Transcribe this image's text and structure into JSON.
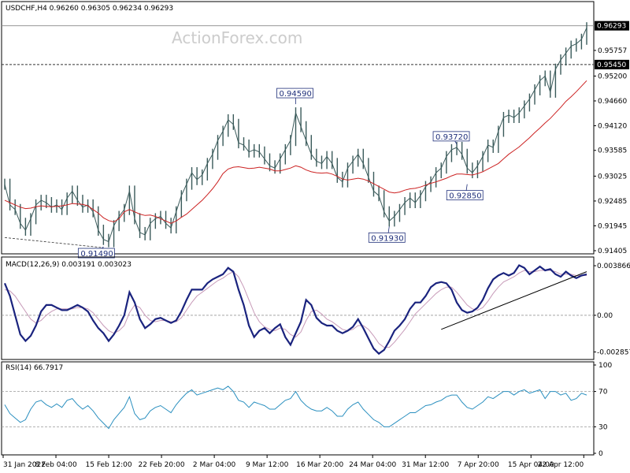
{
  "watermark": "ActionForex.com",
  "colors": {
    "background": "#ffffff",
    "price_bar": "#3a5a5a",
    "moving_average": "#cc2222",
    "macd_line": "#1a237e",
    "signal_line": "#c79ab8",
    "rsi_line": "#2a8fbf",
    "annotation": "#1f2f7a",
    "grid": "#9a9a9a"
  },
  "chart_data": [
    {
      "type": "line",
      "panel": "price",
      "title": "USDCHF,H4 0.96260 0.96305 0.96234 0.96293",
      "ylim": [
        0.91405,
        0.9675
      ],
      "y_ticks": [
        {
          "value": 0.95757,
          "label": "0.95757"
        },
        {
          "value": 0.952,
          "label": "0.95200"
        },
        {
          "value": 0.9466,
          "label": "0.94660"
        },
        {
          "value": 0.9412,
          "label": "0.94120"
        },
        {
          "value": 0.93585,
          "label": "0.93585"
        },
        {
          "value": 0.93025,
          "label": "0.93025"
        },
        {
          "value": 0.92485,
          "label": "0.92485"
        },
        {
          "value": 0.91945,
          "label": "0.91945"
        },
        {
          "value": 0.91405,
          "label": "0.91405"
        }
      ],
      "highlighted_levels": [
        {
          "value": 0.96293,
          "label": "0.96293"
        },
        {
          "value": 0.9545,
          "label": "0.95450"
        }
      ],
      "annotations": [
        {
          "label": "0.91490",
          "x": 19,
          "y": 0.9149
        },
        {
          "label": "0.94590",
          "x": 56,
          "y": 0.9459
        },
        {
          "label": "0.91930",
          "x": 74,
          "y": 0.9193
        },
        {
          "label": "0.93720",
          "x": 87,
          "y": 0.9372
        },
        {
          "label": "0.92850",
          "x": 89,
          "y": 0.9285
        }
      ],
      "support_line": {
        "from": {
          "x": 0,
          "y": 0.9169
        },
        "to": {
          "x": 19,
          "y": 0.9147
        }
      },
      "series": [
        {
          "values": [
            0.9285,
            0.924,
            0.923,
            0.92,
            0.9185,
            0.921,
            0.924,
            0.925,
            0.9245,
            0.9235,
            0.924,
            0.923,
            0.9255,
            0.927,
            0.925,
            0.9235,
            0.924,
            0.9225,
            0.9185,
            0.9165,
            0.916,
            0.9195,
            0.9215,
            0.923,
            0.927,
            0.921,
            0.918,
            0.9175,
            0.92,
            0.921,
            0.9215,
            0.92,
            0.919,
            0.9225,
            0.926,
            0.9285,
            0.931,
            0.9295,
            0.9305,
            0.933,
            0.935,
            0.938,
            0.94,
            0.9425,
            0.9415,
            0.9375,
            0.937,
            0.9355,
            0.936,
            0.9355,
            0.934,
            0.9325,
            0.932,
            0.934,
            0.936,
            0.938,
            0.944,
            0.941,
            0.938,
            0.935,
            0.9335,
            0.933,
            0.9345,
            0.933,
            0.93,
            0.929,
            0.932,
            0.9335,
            0.935,
            0.933,
            0.93,
            0.927,
            0.926,
            0.9225,
            0.9205,
            0.9215,
            0.923,
            0.9245,
            0.9255,
            0.9245,
            0.926,
            0.928,
            0.929,
            0.931,
            0.932,
            0.9345,
            0.936,
            0.9365,
            0.935,
            0.932,
            0.931,
            0.9325,
            0.9345,
            0.937,
            0.9365,
            0.94,
            0.943,
            0.9435,
            0.943,
            0.944,
            0.9455,
            0.947,
            0.949,
            0.951,
            0.952,
            0.9485,
            0.9535,
            0.9555,
            0.957,
            0.9585,
            0.959,
            0.96,
            0.9625
          ]
        },
        {
          "name": "",
          "values": [
            0.925,
            0.9245,
            0.924,
            0.9235,
            0.9232,
            0.9233,
            0.9236,
            0.9238,
            0.9237,
            0.9236,
            0.9237,
            0.9238,
            0.924,
            0.9243,
            0.9242,
            0.9241,
            0.9238,
            0.923,
            0.9222,
            0.9212,
            0.9206,
            0.9203,
            0.921,
            0.9225,
            0.923,
            0.9225,
            0.922,
            0.9217,
            0.9218,
            0.9215,
            0.921,
            0.9205,
            0.92,
            0.9205,
            0.9213,
            0.922,
            0.923,
            0.924,
            0.925,
            0.9262,
            0.9275,
            0.929,
            0.9308,
            0.9318,
            0.9322,
            0.9323,
            0.9321,
            0.9319,
            0.932,
            0.9322,
            0.932,
            0.9318,
            0.9314,
            0.9314,
            0.9317,
            0.932,
            0.9325,
            0.9322,
            0.9316,
            0.9312,
            0.931,
            0.9309,
            0.931,
            0.9307,
            0.9302,
            0.9296,
            0.9294,
            0.9296,
            0.9298,
            0.9296,
            0.9292,
            0.9286,
            0.928,
            0.9274,
            0.9268,
            0.9266,
            0.9268,
            0.9272,
            0.9275,
            0.9276,
            0.9279,
            0.9283,
            0.9287,
            0.929,
            0.9294,
            0.9298,
            0.9303,
            0.9307,
            0.9307,
            0.9306,
            0.9305,
            0.9308,
            0.9312,
            0.9318,
            0.9324,
            0.933,
            0.934,
            0.935,
            0.9358,
            0.9366,
            0.9376,
            0.9386,
            0.9397,
            0.9407,
            0.9418,
            0.9428,
            0.944,
            0.9452,
            0.9465,
            0.9475,
            0.9486,
            0.9498,
            0.951
          ]
        }
      ]
    },
    {
      "type": "line",
      "panel": "macd",
      "title": "MACD(12,26,9) 0.003191 0.003023",
      "ylim": [
        -0.0032,
        0.0043
      ],
      "y_ticks": [
        {
          "value": 0.003866,
          "label": "0.003866"
        },
        {
          "value": 0.0,
          "label": "0.00"
        },
        {
          "value": -0.002857,
          "label": "-0.002857"
        }
      ],
      "trendline": {
        "from": {
          "x": 84,
          "y": -0.0011
        },
        "to": {
          "x": 112,
          "y": 0.0034
        }
      },
      "series": [
        {
          "name": "",
          "values": [
            0.0025,
            0.0015,
            0.0,
            -0.0015,
            -0.002,
            -0.0016,
            -0.0008,
            0.0003,
            0.0008,
            0.0008,
            0.0006,
            0.0004,
            0.0004,
            0.0006,
            0.0008,
            0.0006,
            0.0003,
            -0.0004,
            -0.001,
            -0.0014,
            -0.002,
            -0.0015,
            -0.0008,
            0.0,
            0.0018,
            0.001,
            -0.0003,
            -0.001,
            -0.0007,
            -0.0003,
            -0.0002,
            -0.0004,
            -0.0006,
            -0.0004,
            0.0003,
            0.0012,
            0.002,
            0.002,
            0.002,
            0.0025,
            0.0028,
            0.003,
            0.0032,
            0.0037,
            0.0034,
            0.002,
            0.0008,
            -0.0008,
            -0.0017,
            -0.0012,
            -0.001,
            -0.0014,
            -0.001,
            -0.0007,
            -0.0017,
            -0.0023,
            -0.0014,
            -0.0005,
            0.0012,
            0.0008,
            -0.0002,
            -0.0006,
            -0.0008,
            -0.0008,
            -0.0012,
            -0.0014,
            -0.0012,
            -0.0009,
            -0.0003,
            -0.001,
            -0.0018,
            -0.0026,
            -0.003,
            -0.0027,
            -0.002,
            -0.0012,
            -0.0008,
            -0.0003,
            0.0005,
            0.001,
            0.001,
            0.0015,
            0.0022,
            0.0025,
            0.0026,
            0.0025,
            0.002,
            0.001,
            0.0004,
            0.0002,
            0.0003,
            0.0006,
            0.0012,
            0.0021,
            0.0028,
            0.0031,
            0.0033,
            0.0031,
            0.0033,
            0.0039,
            0.0037,
            0.0032,
            0.0035,
            0.0038,
            0.0035,
            0.0036,
            0.0032,
            0.003,
            0.0034,
            0.0031,
            0.0029,
            0.0031,
            0.0032
          ]
        },
        {
          "name": "",
          "values": [
            0.002,
            0.0019,
            0.0015,
            0.0009,
            0.0003,
            -0.0003,
            -0.0006,
            -0.0004,
            0.0,
            0.0003,
            0.0005,
            0.0005,
            0.0005,
            0.0005,
            0.0006,
            0.0006,
            0.0005,
            0.0002,
            -0.0003,
            -0.0008,
            -0.0012,
            -0.0014,
            -0.0012,
            -0.0008,
            0.0002,
            0.0008,
            0.0006,
            0.0,
            -0.0004,
            -0.0005,
            -0.0004,
            -0.0004,
            -0.0005,
            -0.0005,
            -0.0002,
            0.0004,
            0.001,
            0.0015,
            0.0018,
            0.0021,
            0.0024,
            0.0027,
            0.0029,
            0.0032,
            0.0034,
            0.003,
            0.0022,
            0.0012,
            0.0002,
            -0.0005,
            -0.0009,
            -0.0011,
            -0.0012,
            -0.001,
            -0.0011,
            -0.0015,
            -0.0017,
            -0.0013,
            -0.0004,
            0.0003,
            0.0004,
            0.0001,
            -0.0003,
            -0.0005,
            -0.0008,
            -0.0011,
            -0.0012,
            -0.0011,
            -0.0008,
            -0.0008,
            -0.0011,
            -0.0016,
            -0.0022,
            -0.0025,
            -0.0025,
            -0.0021,
            -0.0016,
            -0.0011,
            -0.0005,
            0.0001,
            0.0005,
            0.0009,
            0.0013,
            0.0017,
            0.002,
            0.0022,
            0.0022,
            0.0018,
            0.0013,
            0.0008,
            0.0005,
            0.0004,
            0.0006,
            0.0011,
            0.0017,
            0.0022,
            0.0026,
            0.0028,
            0.003,
            0.0033,
            0.0035,
            0.0034,
            0.0034,
            0.0035,
            0.0035,
            0.0035,
            0.0034,
            0.0032,
            0.0032,
            0.0032,
            0.0031,
            0.0031,
            0.0031
          ]
        }
      ]
    },
    {
      "type": "line",
      "panel": "rsi",
      "title": "RSI(14) 66.7917",
      "ylim": [
        0,
        100
      ],
      "y_ticks": [
        {
          "value": 100,
          "label": "100"
        },
        {
          "value": 70,
          "label": "70"
        },
        {
          "value": 30,
          "label": "30"
        },
        {
          "value": 0,
          "label": "0"
        }
      ],
      "levels": [
        70,
        30
      ],
      "series": [
        {
          "name": "",
          "values": [
            55,
            45,
            40,
            35,
            38,
            50,
            58,
            60,
            55,
            52,
            56,
            52,
            60,
            62,
            55,
            50,
            54,
            48,
            40,
            34,
            28,
            38,
            45,
            52,
            64,
            45,
            38,
            40,
            48,
            52,
            54,
            50,
            46,
            55,
            62,
            68,
            72,
            66,
            68,
            70,
            72,
            74,
            72,
            76,
            70,
            60,
            58,
            52,
            58,
            56,
            54,
            50,
            50,
            55,
            60,
            62,
            70,
            60,
            54,
            50,
            48,
            48,
            52,
            48,
            42,
            42,
            50,
            55,
            58,
            50,
            44,
            38,
            35,
            30,
            30,
            34,
            38,
            42,
            46,
            46,
            50,
            54,
            55,
            58,
            60,
            64,
            66,
            66,
            58,
            52,
            50,
            54,
            58,
            64,
            62,
            66,
            70,
            70,
            66,
            70,
            72,
            68,
            70,
            72,
            62,
            70,
            70,
            66,
            68,
            60,
            62,
            68,
            66
          ]
        }
      ],
      "x_labels": [
        "31 Jan 2022",
        "8 Feb 04:00",
        "15 Feb 12:00",
        "22 Feb 20:00",
        "2 Mar 04:00",
        "9 Mar 12:00",
        "16 Mar 20:00",
        "24 Mar 04:00",
        "31 Mar 12:00",
        "7 Apr 20:00",
        "15 Apr 04:00",
        "22 Apr 12:00"
      ]
    }
  ]
}
